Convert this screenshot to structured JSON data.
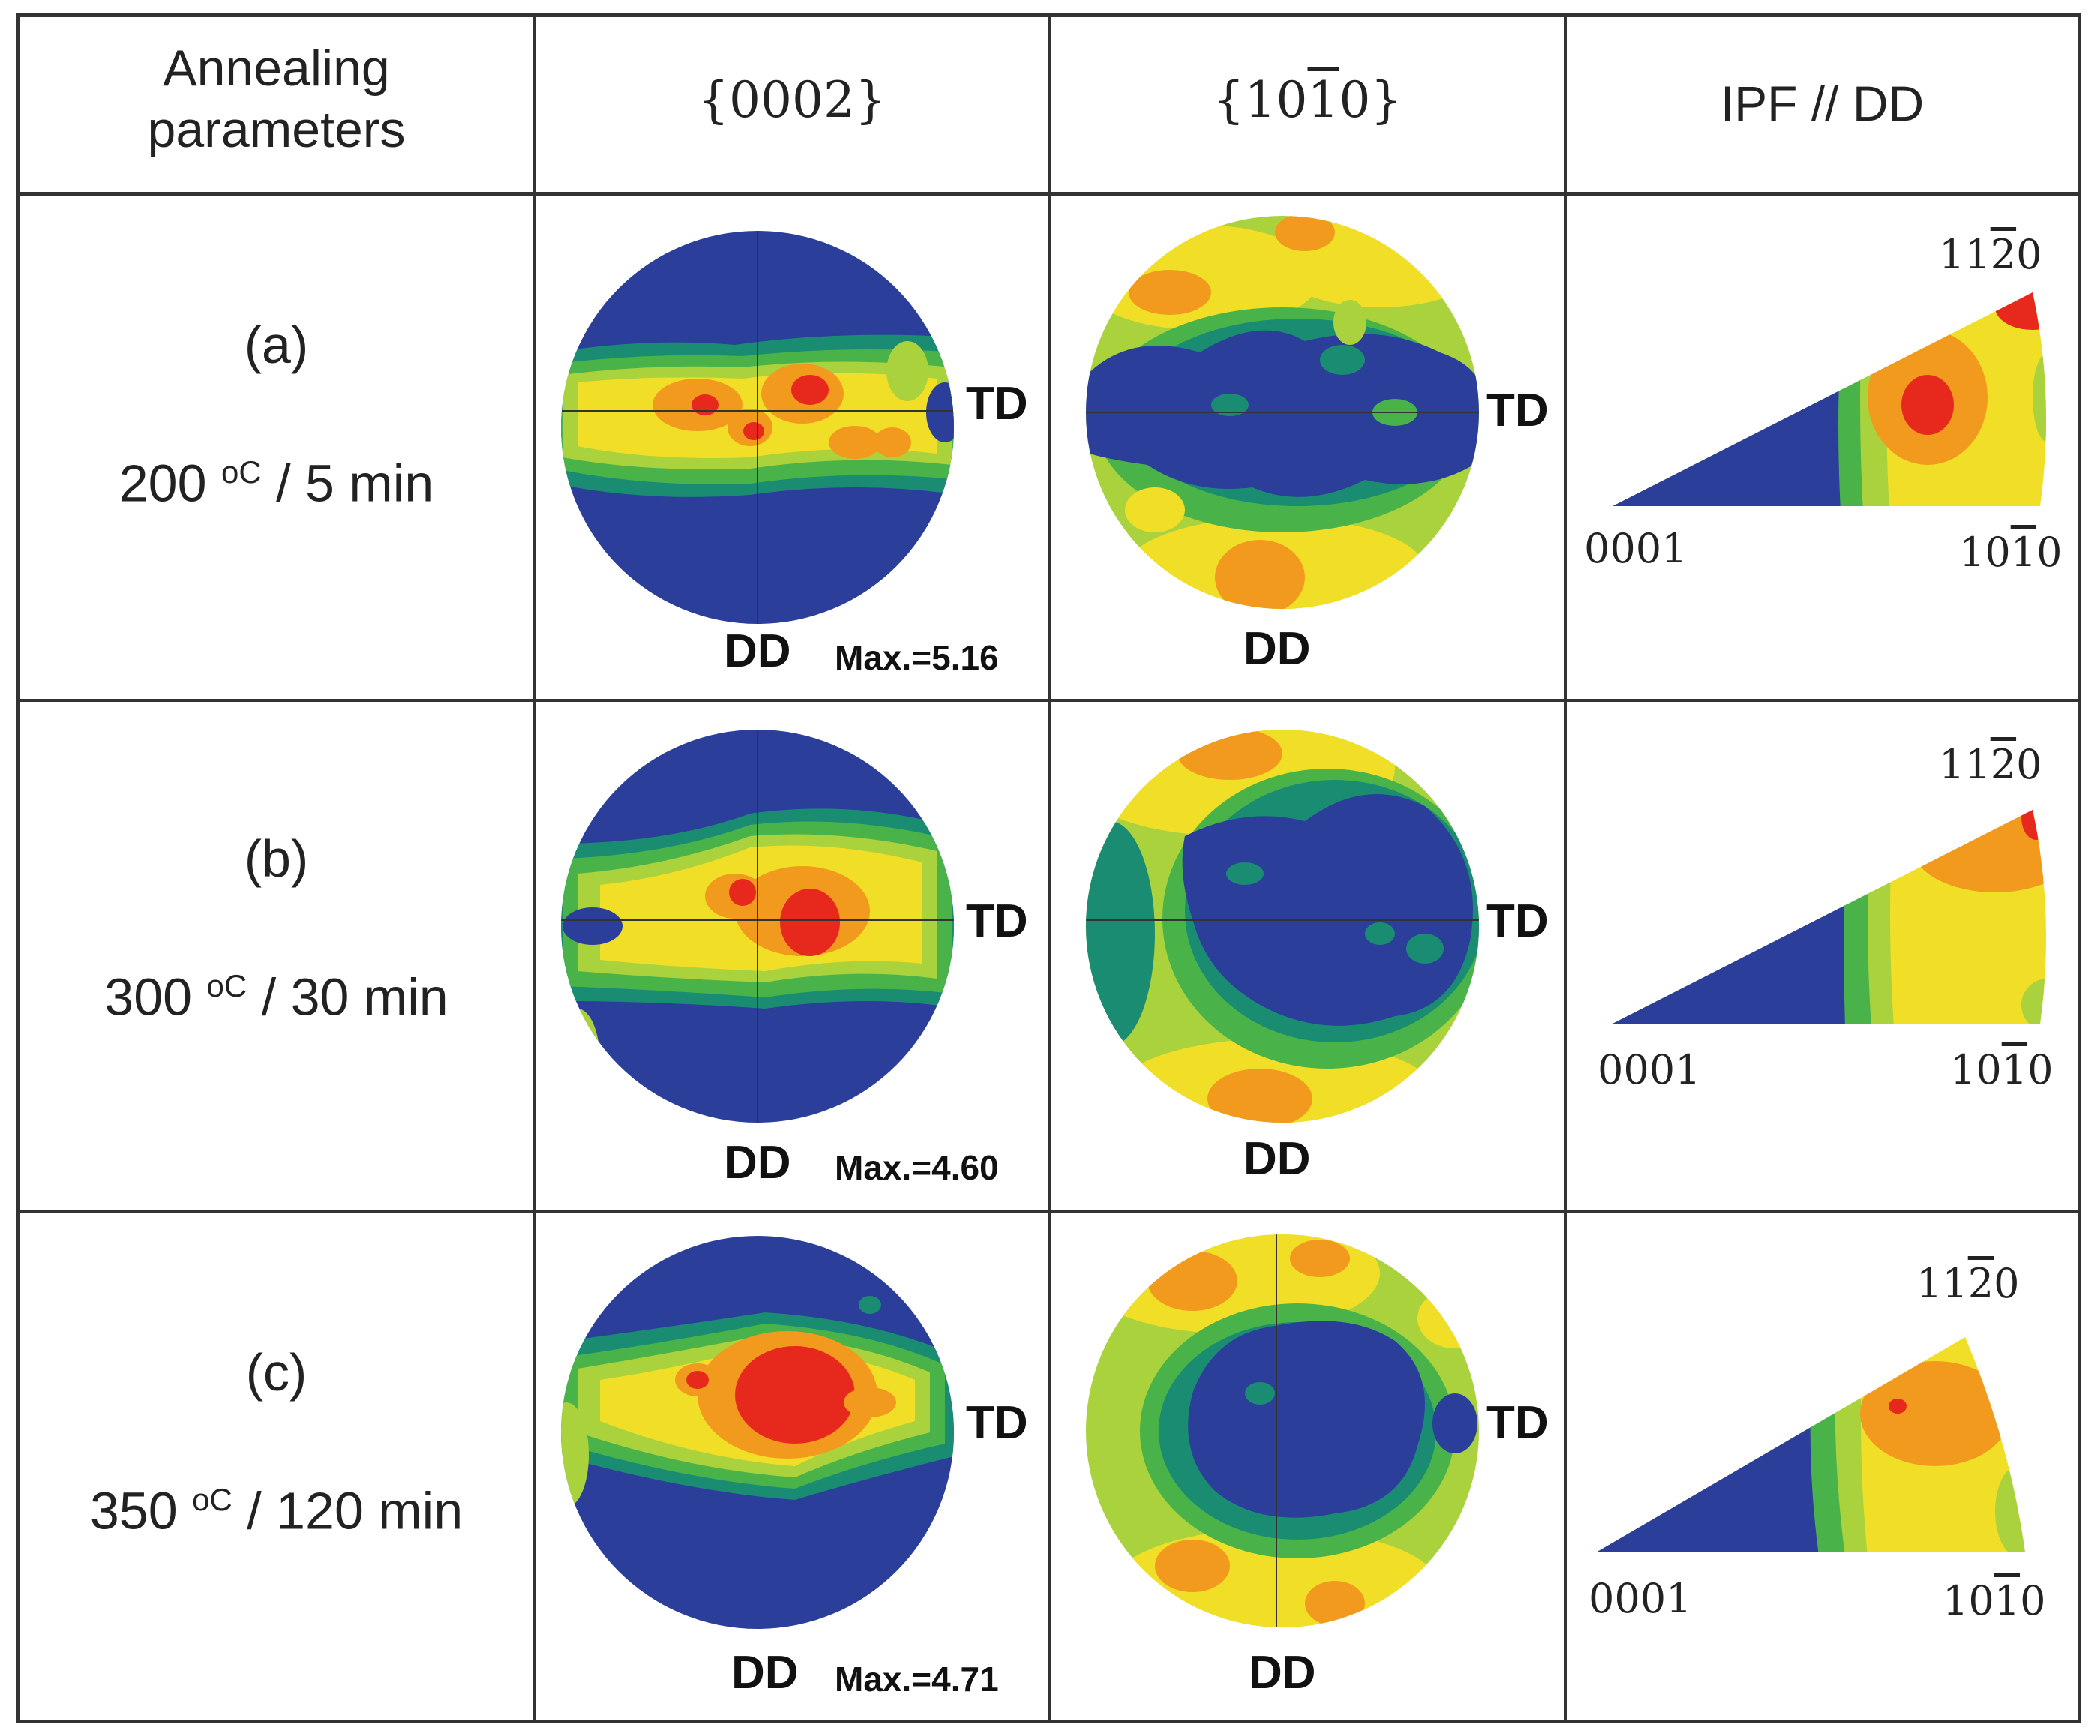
{
  "header": {
    "col1_line1": "Annealing",
    "col1_line2": "parameters",
    "col2": "{0002}",
    "col3_pre": "{10",
    "col3_bar": "1",
    "col3_post": "0}",
    "col4": "IPF // DD"
  },
  "rows": [
    {
      "label": "(a)",
      "temp": "200 ",
      "unit": "oC",
      "time": " / 5 min",
      "max": "Max.=5.16"
    },
    {
      "label": "(b)",
      "temp": "300 ",
      "unit": "oC",
      "time": " / 30 min",
      "max": "Max.=4.60"
    },
    {
      "label": "(c)",
      "temp": "350 ",
      "unit": "oC",
      "time": " / 120 min",
      "max": "Max.=4.71"
    }
  ],
  "labels": {
    "td": "TD",
    "dd": "DD"
  },
  "ipf": {
    "corner1": "0001",
    "corner2_pre": "10",
    "corner2_bar": "1",
    "corner2_post": "0",
    "corner3_pre": "11",
    "corner3_bar": "2",
    "corner3_post": "0"
  },
  "colors": {
    "blue": "#2a3e9a",
    "teal": "#1a8c72",
    "green": "#49b34a",
    "lime": "#a9d23c",
    "yellow": "#f1df27",
    "orange": "#f29a1e",
    "red": "#e7281c"
  }
}
